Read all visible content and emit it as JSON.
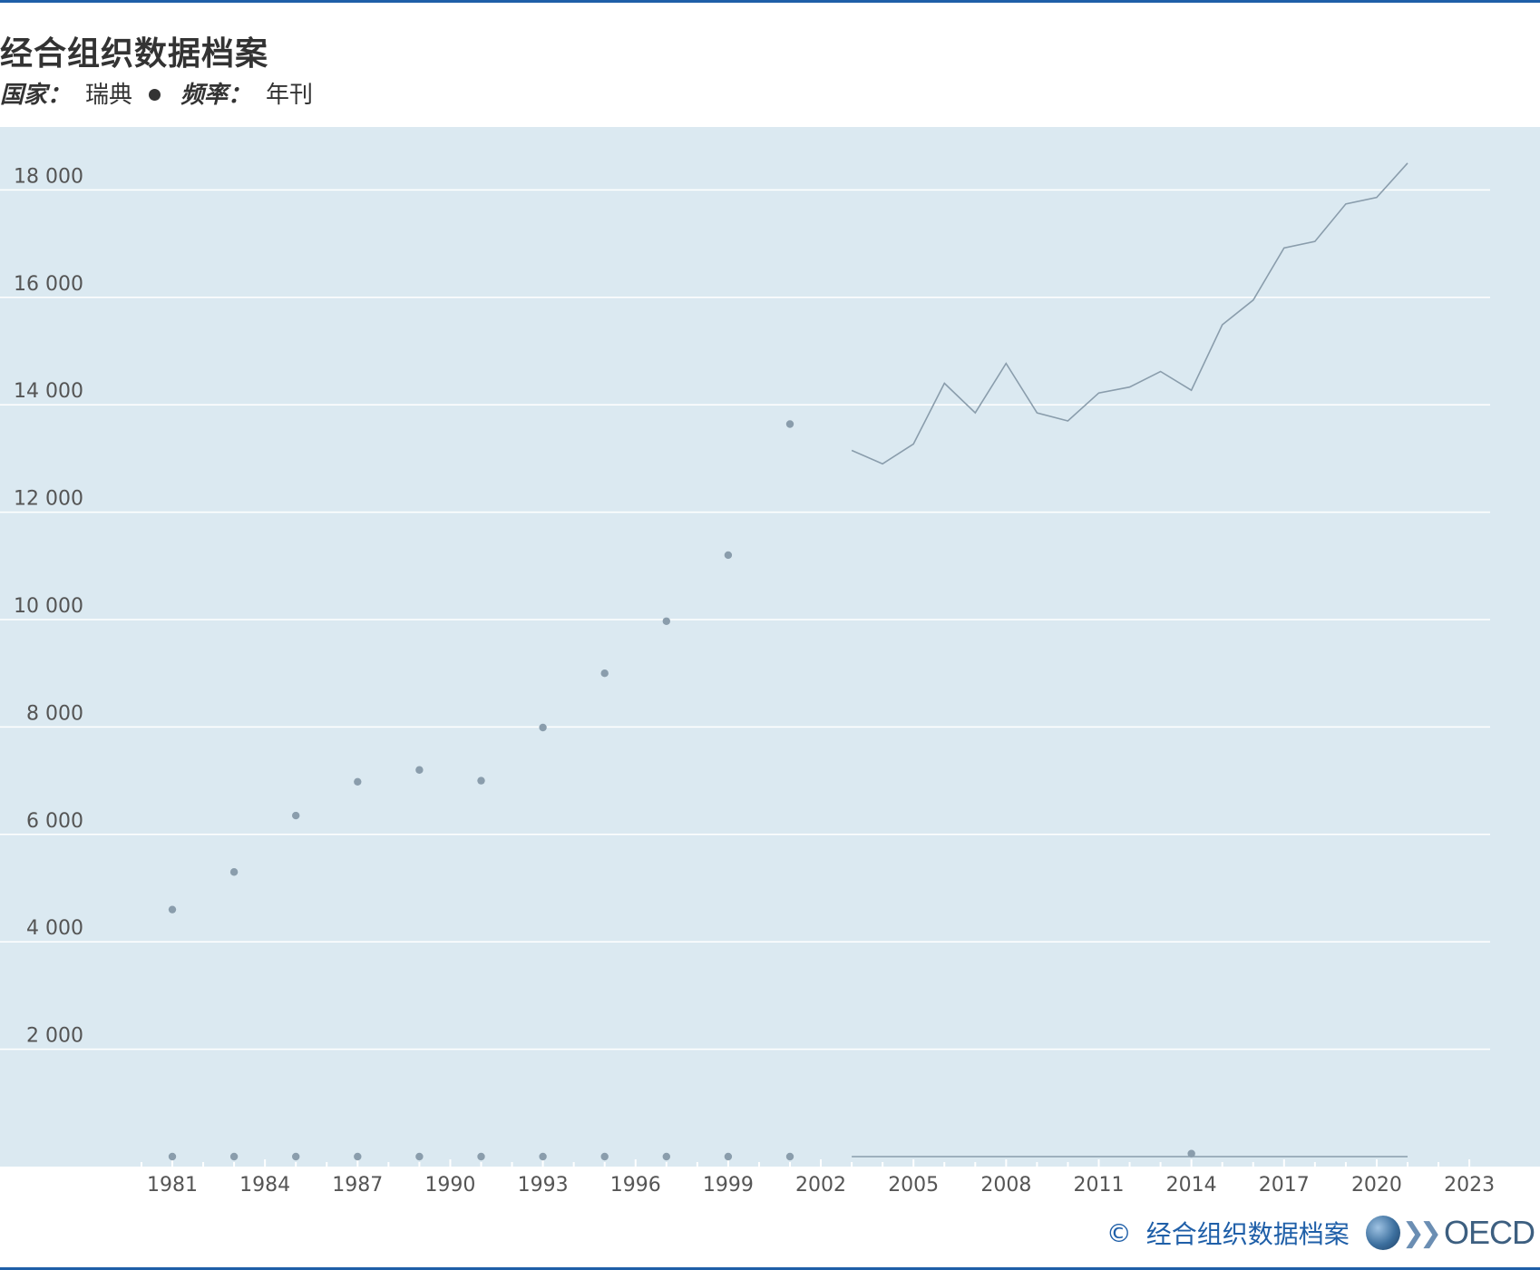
{
  "header": {
    "title": "经合组织数据档案",
    "country_label": "国家：",
    "country_value": "瑞典",
    "frequency_label": "频率：",
    "frequency_value": "年刊"
  },
  "footer": {
    "copyright": "©",
    "source": "经合组织数据档案",
    "logo_text": "OECD"
  },
  "colors": {
    "plot_background": "#dbe9f1",
    "series": "#8a9dac",
    "accent": "#1f5fa8"
  },
  "chart_data": {
    "type": "line",
    "title": "",
    "xlabel": "",
    "ylabel": "",
    "xlim": [
      1980,
      2024
    ],
    "ylim": [
      -1000,
      18600
    ],
    "x_ticks": [
      1981,
      1984,
      1987,
      1990,
      1993,
      1996,
      1999,
      2002,
      2005,
      2008,
      2011,
      2014,
      2017,
      2020,
      2023
    ],
    "y_ticks": [
      2000,
      4000,
      6000,
      8000,
      10000,
      12000,
      14000,
      16000,
      18000
    ],
    "y_tick_labels": [
      "2 000",
      "4 000",
      "6 000",
      "8 000",
      "10 000",
      "12 000",
      "14 000",
      "16 000",
      "18 000"
    ],
    "grid": true,
    "legend": "none",
    "series": [
      {
        "style": "points",
        "x": [
          1981,
          1983,
          1985,
          1987,
          1989,
          1991,
          1993,
          1995,
          1997,
          1999,
          2001
        ],
        "y": [
          4600,
          5300,
          6350,
          6980,
          7200,
          7000,
          7990,
          9000,
          9970,
          11200,
          13640
        ]
      },
      {
        "style": "line",
        "x": [
          2003,
          2004,
          2005,
          2006,
          2007,
          2008,
          2009,
          2010,
          2011,
          2012,
          2013,
          2014,
          2015,
          2016,
          2017,
          2018,
          2019,
          2020,
          2021
        ],
        "y": [
          13150,
          12900,
          13270,
          14400,
          13850,
          14770,
          13850,
          13700,
          14220,
          14330,
          14620,
          14270,
          15490,
          15950,
          16920,
          17040,
          17740,
          17860,
          18500
        ]
      },
      {
        "style": "points",
        "x": [
          1981,
          1983,
          1985,
          1987,
          1989,
          1991,
          1993,
          1995,
          1997,
          1999,
          2001
        ],
        "y": [
          0,
          0,
          0,
          0,
          0,
          0,
          0,
          0,
          0,
          0,
          0
        ]
      },
      {
        "style": "line",
        "x": [
          2003,
          2004,
          2005,
          2006,
          2007,
          2008,
          2009,
          2010,
          2011,
          2012,
          2013,
          2014,
          2015,
          2016,
          2017,
          2018,
          2019,
          2020,
          2021
        ],
        "y": [
          0,
          0,
          0,
          0,
          0,
          0,
          0,
          0,
          0,
          0,
          0,
          0,
          0,
          0,
          0,
          0,
          0,
          0,
          0
        ]
      },
      {
        "style": "points",
        "x": [
          2014
        ],
        "y": [
          55
        ]
      }
    ]
  }
}
